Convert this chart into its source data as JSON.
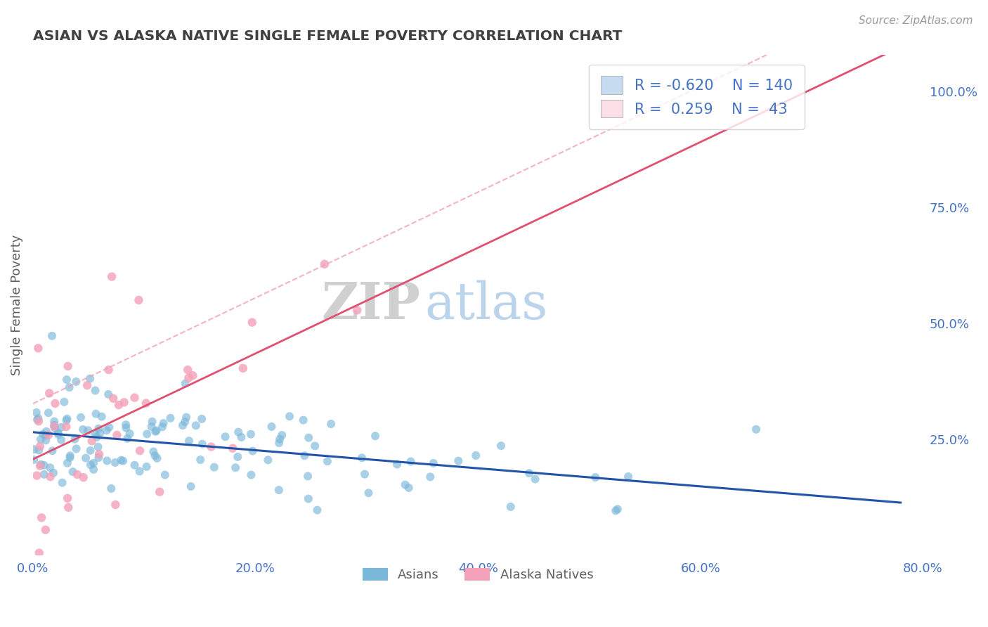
{
  "title": "ASIAN VS ALASKA NATIVE SINGLE FEMALE POVERTY CORRELATION CHART",
  "source_text": "Source: ZipAtlas.com",
  "ylabel": "Single Female Poverty",
  "legend_labels": [
    "Asians",
    "Alaska Natives"
  ],
  "legend_R": [
    -0.62,
    0.259
  ],
  "legend_N": [
    140,
    43
  ],
  "blue_color": "#7ab8d9",
  "blue_line_color": "#2255aa",
  "pink_color": "#f4a0b8",
  "pink_line_color": "#e05070",
  "pink_dash_color": "#f0a0b8",
  "blue_fill": "#c6dbef",
  "pink_fill": "#fce0e8",
  "xlim": [
    0.0,
    0.8
  ],
  "ylim": [
    0.0,
    1.08
  ],
  "xtick_labels": [
    "0.0%",
    "20.0%",
    "40.0%",
    "60.0%",
    "80.0%"
  ],
  "xtick_vals": [
    0.0,
    0.2,
    0.4,
    0.6,
    0.8
  ],
  "ytick_labels_right": [
    "25.0%",
    "50.0%",
    "75.0%",
    "100.0%"
  ],
  "ytick_vals_right": [
    0.25,
    0.5,
    0.75,
    1.0
  ],
  "watermark_zip": "ZIP",
  "watermark_atlas": "atlas",
  "watermark_zip_color": "#c8c8c8",
  "watermark_atlas_color": "#b0cce8",
  "background_color": "#ffffff",
  "grid_color": "#cccccc",
  "title_color": "#404040",
  "axis_label_color": "#606060",
  "tick_color": "#4472c4",
  "legend_color": "#4472c4"
}
